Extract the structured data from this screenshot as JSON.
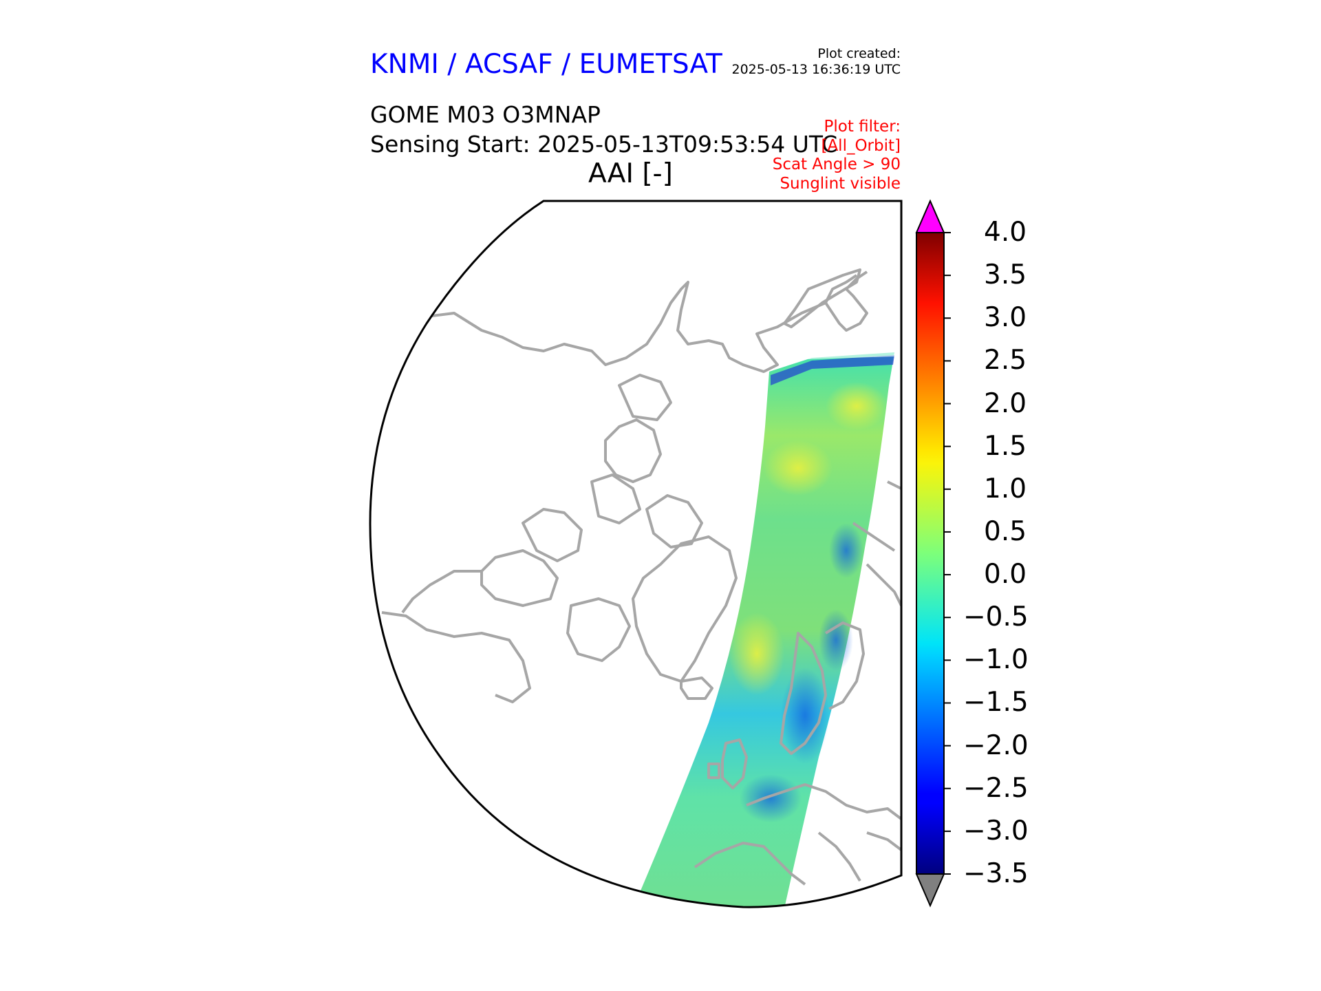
{
  "header": {
    "title": "KNMI / ACSAF / EUMETSAT",
    "plot_created_label": "Plot created:",
    "plot_created_time": "2025-05-13 16:36:19 UTC"
  },
  "product": {
    "title": "GOME M03 O3MNAP",
    "sensing_start": "Sensing Start: 2025-05-13T09:53:54 UTC",
    "variable": "AAI [-]"
  },
  "plot_filter": {
    "label": "Plot filter:",
    "items": [
      "[All_Orbit]",
      "Scat Angle > 90",
      "Sunglint visible"
    ]
  },
  "colorbar": {
    "min": -3.5,
    "max": 4.0,
    "ticks": [
      "4.0",
      "3.5",
      "3.0",
      "2.5",
      "2.0",
      "1.5",
      "1.0",
      "0.5",
      "0.0",
      "−0.5",
      "−1.0",
      "−1.5",
      "−2.0",
      "−2.5",
      "−3.0",
      "−3.5"
    ],
    "over_color": "#ff00ff",
    "under_color": "#808080",
    "colormap": "jet"
  },
  "map": {
    "projection": "north-polar stereographic",
    "coastline_color": "#a6a6a6",
    "swath_region": "Arctic to Europe"
  }
}
